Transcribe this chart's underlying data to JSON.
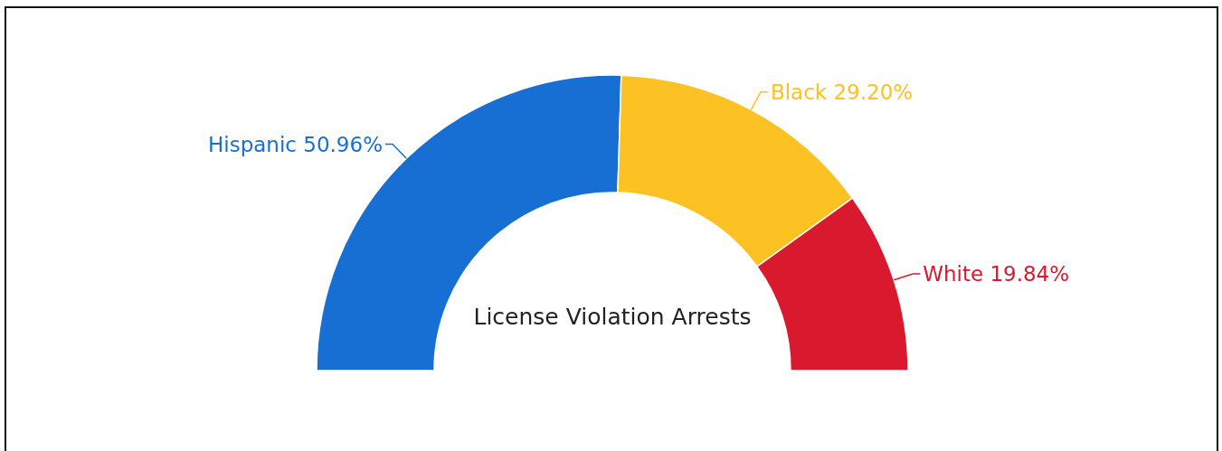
{
  "chart_data": {
    "type": "donut",
    "title": "License Violation Arrests",
    "categories": [
      "Hispanic",
      "Black",
      "White"
    ],
    "values": [
      50.96,
      29.2,
      19.84
    ],
    "value_labels": [
      "50.96%",
      "29.20%",
      "19.84%"
    ],
    "colors": [
      "#176fd3",
      "#fcc223",
      "#d9192d"
    ]
  }
}
